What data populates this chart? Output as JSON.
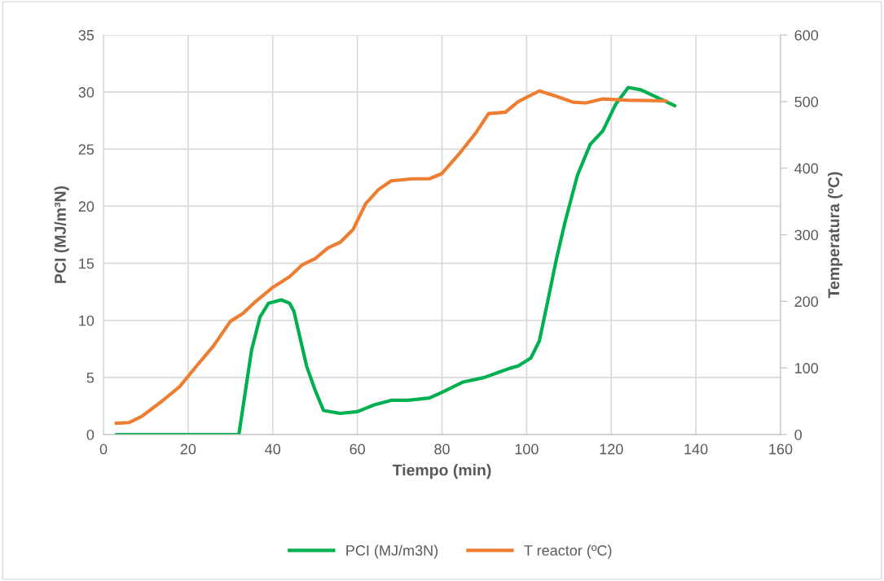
{
  "chart_data": {
    "type": "line",
    "xlabel": "Tiempo (min)",
    "ylabel": "PCI (MJ/m³N)",
    "y2label": "Temperatura (ºC)",
    "xlim": [
      0,
      160
    ],
    "xticks": [
      0,
      20,
      40,
      60,
      80,
      100,
      120,
      140,
      160
    ],
    "ylim": [
      0,
      35
    ],
    "yticks": [
      0,
      5,
      10,
      15,
      20,
      25,
      30,
      35
    ],
    "y2lim": [
      0,
      600
    ],
    "y2ticks": [
      0,
      100,
      200,
      300,
      400,
      500,
      600
    ],
    "grid": true,
    "legend": "bottom",
    "marker": "none",
    "line_style": "solid",
    "series": [
      {
        "name": "PCI (MJ/m3N)",
        "color": "#00b050",
        "x": [
          3,
          30,
          32,
          35,
          37,
          39,
          42,
          44,
          45,
          48,
          50,
          52,
          56,
          60,
          64,
          68,
          72,
          77,
          80,
          85,
          90,
          93,
          96,
          98,
          101,
          103,
          105,
          107,
          109,
          112,
          115,
          118,
          121,
          124,
          127,
          131,
          135
        ],
        "values": [
          0,
          0,
          0,
          7.4,
          10.3,
          11.5,
          11.8,
          11.5,
          10.8,
          6.0,
          3.9,
          2.1,
          1.85,
          2.0,
          2.6,
          3.0,
          3.0,
          3.2,
          3.7,
          4.6,
          5.0,
          5.4,
          5.8,
          6.0,
          6.7,
          8.2,
          11.7,
          15.3,
          18.5,
          22.7,
          25.4,
          26.6,
          28.9,
          30.4,
          30.2,
          29.5,
          28.8
        ]
      },
      {
        "name": "T reactor (ºC)",
        "color": "#ed7d31",
        "axis": "y2",
        "x": [
          3,
          6,
          9,
          14,
          18,
          22,
          26,
          30,
          33,
          36,
          40,
          44,
          47,
          50,
          53,
          56,
          59,
          62,
          65,
          68,
          73,
          77,
          80,
          84,
          88,
          91,
          95,
          98,
          103,
          107,
          111,
          114,
          118,
          124,
          133
        ],
        "values": [
          17,
          18,
          27,
          51,
          72,
          103,
          133,
          170,
          182,
          200,
          221,
          237,
          255,
          264,
          280,
          289,
          308,
          347,
          368,
          381,
          384,
          384,
          392,
          421,
          453,
          482,
          484,
          500,
          516,
          508,
          499,
          498,
          504,
          502,
          501
        ]
      }
    ]
  }
}
